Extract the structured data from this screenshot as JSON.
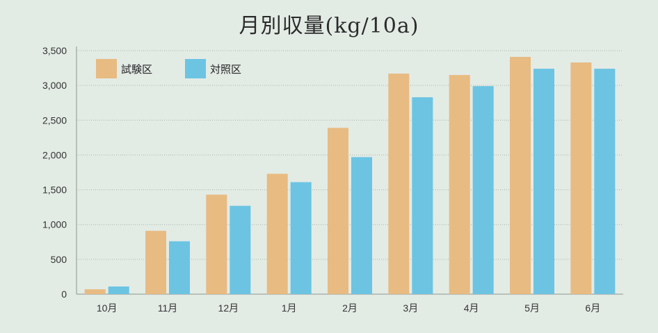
{
  "chart_data": {
    "type": "bar",
    "title": "月別収量(kg/10a)",
    "xlabel": "",
    "ylabel": "",
    "categories": [
      "10月",
      "11月",
      "12月",
      "1月",
      "2月",
      "3月",
      "4月",
      "5月",
      "6月"
    ],
    "series": [
      {
        "name": "試験区",
        "color": "#e8bb82",
        "values": [
          70,
          910,
          1430,
          1730,
          2390,
          3170,
          3150,
          3410,
          3330
        ]
      },
      {
        "name": "対照区",
        "color": "#6cc4e2",
        "values": [
          110,
          760,
          1270,
          1610,
          1970,
          2830,
          2990,
          3240,
          3240
        ]
      }
    ],
    "ylim": [
      0,
      3500
    ],
    "yticks": [
      0,
      500,
      1000,
      1500,
      2000,
      2500,
      3000,
      3500
    ],
    "ytick_labels": [
      "0",
      "500",
      "1,000",
      "1,500",
      "2,000",
      "2,500",
      "3,000",
      "3,500"
    ],
    "grid": true,
    "legend_position": "top-left",
    "colors": {
      "background": "#e3ebe5",
      "grid": "#a9b2ab",
      "axis": "#8c948e"
    }
  }
}
